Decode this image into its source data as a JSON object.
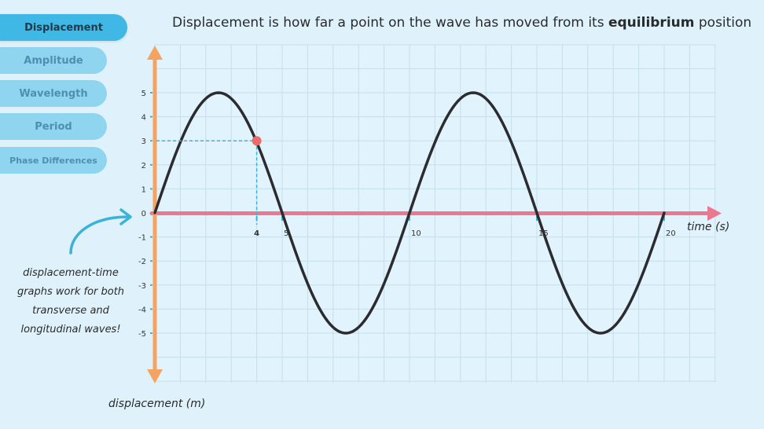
{
  "tabs": [
    {
      "label": "Displacement",
      "active": true
    },
    {
      "label": "Amplitude",
      "active": false
    },
    {
      "label": "Wavelength",
      "active": false
    },
    {
      "label": "Period",
      "active": false
    },
    {
      "label": "Phase Differences",
      "active": false
    }
  ],
  "headline": {
    "before": "Displacement is how far a point on the wave has moved from its ",
    "bold": "equilibrium",
    "after": " position"
  },
  "note": "displacement-time graphs work for both transverse and longitudinal waves!",
  "y_axis_label": "displacement (m)",
  "x_axis_label": "time (s)",
  "colors": {
    "background": "#dff2fb",
    "grid": "#c5dfeb",
    "x_axis": "#ec7890",
    "y_axis": "#f4a460",
    "wave": "#2b2b30",
    "highlight_point": "#ec6a6a",
    "guide": "#3bb3d8",
    "active_tab": "#40b8e6",
    "inactive_tab": "#8fd5f0"
  },
  "chart_data": {
    "type": "line",
    "function": "sine",
    "amplitude": 5,
    "period": 10,
    "x_ticks": [
      "4",
      "5",
      "10",
      "15",
      "20"
    ],
    "y_ticks": [
      "5",
      "4",
      "3",
      "2",
      "1",
      "0",
      "-1",
      "-2",
      "-3",
      "-4",
      "-5"
    ],
    "xlim": [
      0,
      20
    ],
    "ylim": [
      -5,
      5
    ],
    "highlighted_point": {
      "x": 4,
      "y": 3
    }
  }
}
